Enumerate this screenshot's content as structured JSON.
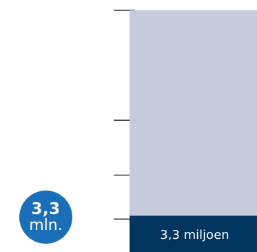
{
  "colors": {
    "total_fill": "#c5cadd",
    "segment_fill": "#00355f",
    "badge_fill": "#1a6fb8",
    "tick_color": "#000000",
    "badge_text": "#ffffff"
  },
  "badge": {
    "value": "3,3",
    "unit": "mln."
  },
  "chart_data": {
    "type": "bar",
    "stacked": true,
    "grid": false,
    "series": [
      {
        "values": [
          3.3
        ],
        "label": "3,3 miljoen"
      },
      {
        "values": [
          18.7
        ]
      }
    ],
    "total": 22,
    "ylim": [
      0,
      22
    ],
    "ticks": [
      0,
      3,
      7,
      12,
      22
    ]
  }
}
